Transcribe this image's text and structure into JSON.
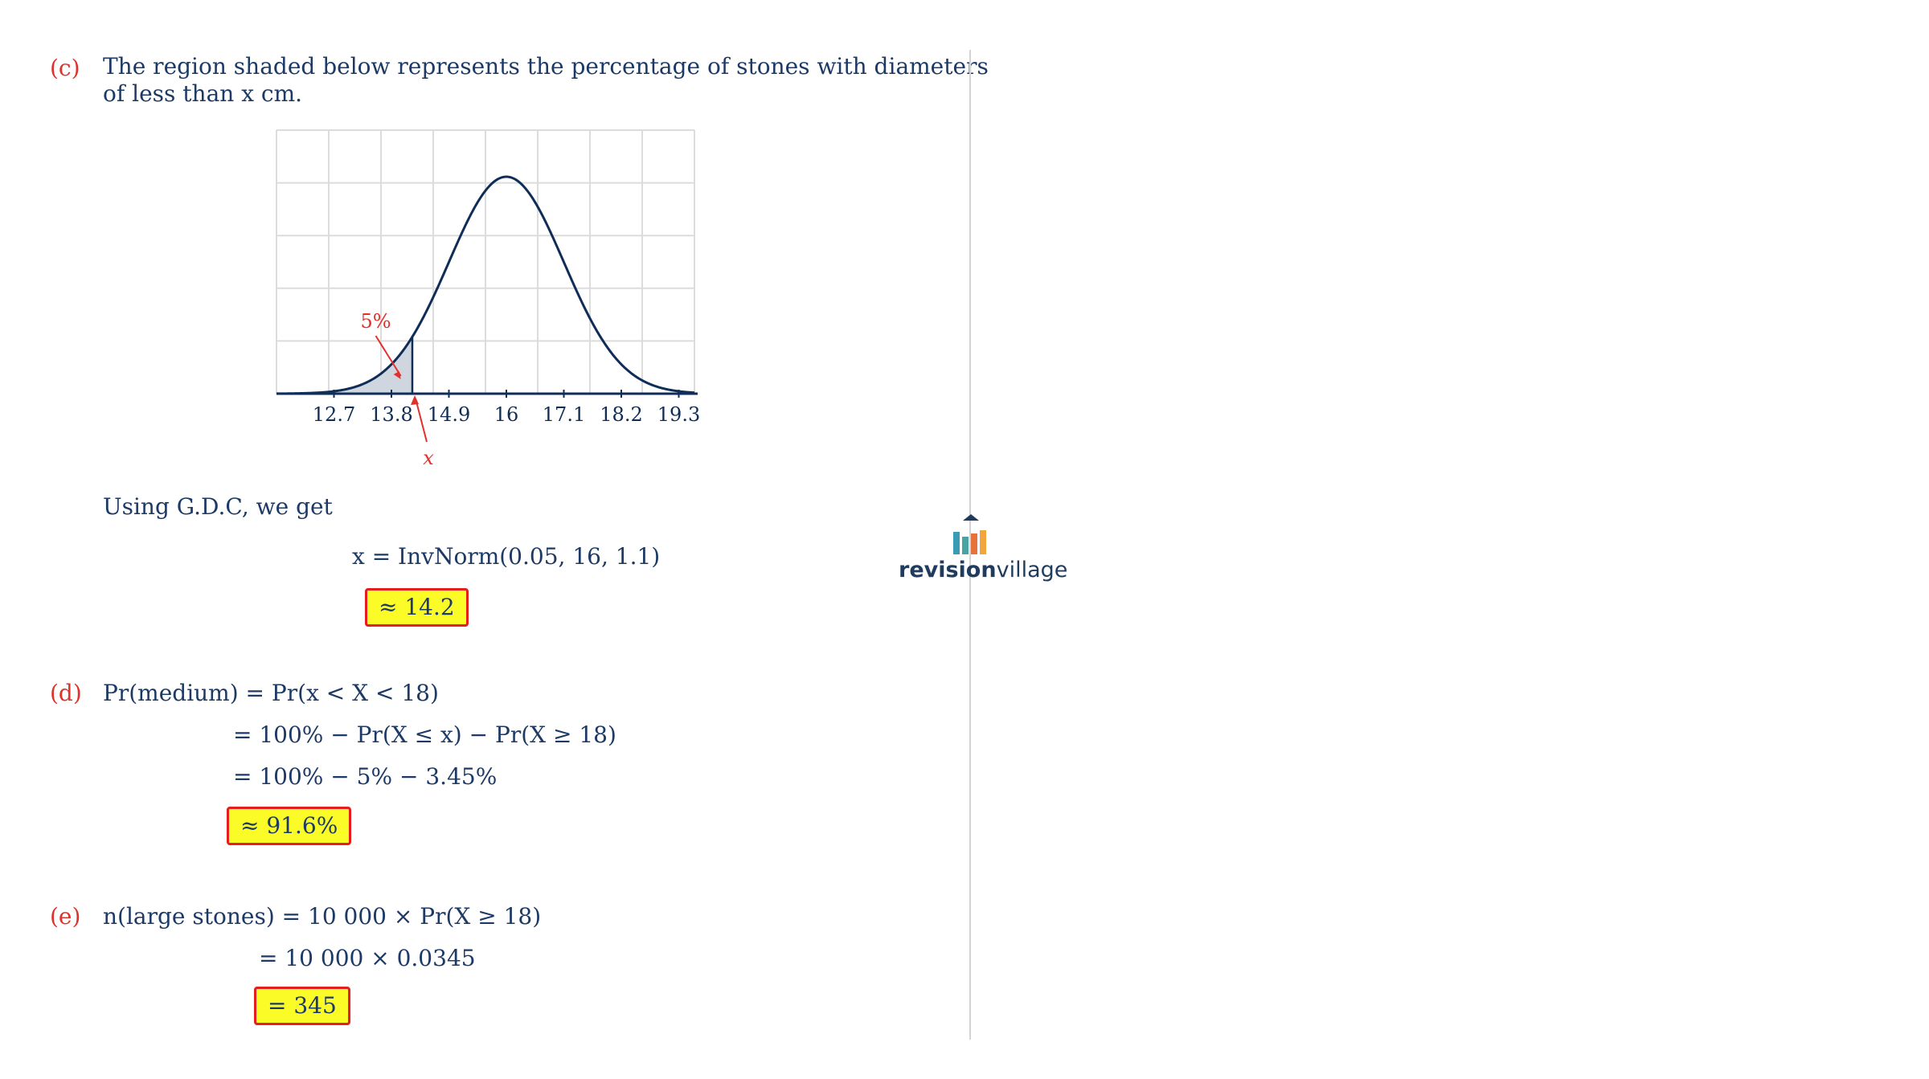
{
  "part_c": {
    "label": "(c)",
    "line1": "The region shaded below represents the percentage of stones with diameters",
    "line2": "of less than x cm.",
    "gdc_text": "Using G.D.C, we get",
    "equation": "x = InvNorm(0.05, 16, 1.1)",
    "answer": "≈ 14.2"
  },
  "part_d": {
    "label": "(d)",
    "line1": "Pr(medium) = Pr(x < X < 18)",
    "line2": "= 100% − Pr(X ≤ x) − Pr(X ≥ 18)",
    "line3": "= 100% − 5% − 3.45%",
    "answer": "≈ 91.6%"
  },
  "part_e": {
    "label": "(e)",
    "line1": "n(large stones) = 10 000 × Pr(X ≥ 18)",
    "line2": "= 10 000 × 0.0345",
    "answer": "= 345"
  },
  "logo": {
    "word_bold": "revision",
    "word_light": "village",
    "colors": [
      "#3a9bb5",
      "#4aa3a3",
      "#e6733c",
      "#f2a53a"
    ],
    "roof_color": "#1f3b5e"
  },
  "chart_data": {
    "type": "area",
    "description_mean": 16,
    "sd": 1.1,
    "tick_labels": [
      "12.7",
      "13.8",
      "14.9",
      "16",
      "17.1",
      "18.2",
      "19.3"
    ],
    "tick_values": [
      12.7,
      13.8,
      14.9,
      16,
      17.1,
      18.2,
      19.3
    ],
    "shaded_upper": 14.2,
    "annotation": "5%",
    "marker_label": "x",
    "xlim": [
      11.6,
      19.6
    ],
    "grid": true,
    "colors": {
      "curve": "#0f2d57",
      "shade": "#cfd6e0",
      "annotation": "#e0322c",
      "grid": "#dcdcdc"
    }
  }
}
